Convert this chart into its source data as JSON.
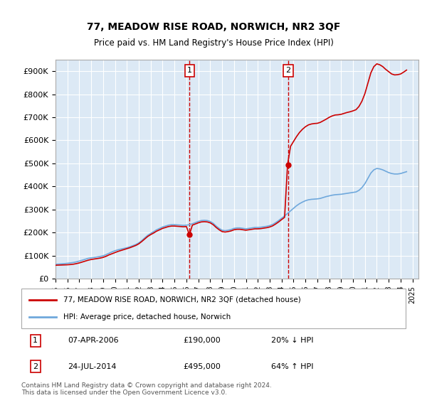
{
  "title": "77, MEADOW RISE ROAD, NORWICH, NR2 3QF",
  "subtitle": "Price paid vs. HM Land Registry's House Price Index (HPI)",
  "background_color": "#ffffff",
  "plot_bg_color": "#dce9f5",
  "grid_color": "#ffffff",
  "ylim": [
    0,
    950000
  ],
  "yticks": [
    0,
    100000,
    200000,
    300000,
    400000,
    500000,
    600000,
    700000,
    800000,
    900000
  ],
  "ytick_labels": [
    "£0",
    "£100K",
    "£200K",
    "£300K",
    "£400K",
    "£500K",
    "£600K",
    "£700K",
    "£800K",
    "£900K"
  ],
  "xlim_start": 1995.0,
  "xlim_end": 2025.5,
  "sale1_x": 2006.27,
  "sale1_y": 190000,
  "sale1_label": "1",
  "sale1_date": "07-APR-2006",
  "sale1_price": "£190,000",
  "sale1_hpi": "20% ↓ HPI",
  "sale2_x": 2014.56,
  "sale2_y": 495000,
  "sale2_label": "2",
  "sale2_date": "24-JUL-2014",
  "sale2_price": "£495,000",
  "sale2_hpi": "64% ↑ HPI",
  "legend_line1": "77, MEADOW RISE ROAD, NORWICH, NR2 3QF (detached house)",
  "legend_line2": "HPI: Average price, detached house, Norwich",
  "footnote": "Contains HM Land Registry data © Crown copyright and database right 2024.\nThis data is licensed under the Open Government Licence v3.0.",
  "hpi_color": "#6fa8dc",
  "property_color": "#cc0000",
  "sale_marker_color": "#cc0000",
  "vline_color": "#cc0000",
  "hpi_years": [
    1995.0,
    1995.25,
    1995.5,
    1995.75,
    1996.0,
    1996.25,
    1996.5,
    1996.75,
    1997.0,
    1997.25,
    1997.5,
    1997.75,
    1998.0,
    1998.25,
    1998.5,
    1998.75,
    1999.0,
    1999.25,
    1999.5,
    1999.75,
    2000.0,
    2000.25,
    2000.5,
    2000.75,
    2001.0,
    2001.25,
    2001.5,
    2001.75,
    2002.0,
    2002.25,
    2002.5,
    2002.75,
    2003.0,
    2003.25,
    2003.5,
    2003.75,
    2004.0,
    2004.25,
    2004.5,
    2004.75,
    2005.0,
    2005.25,
    2005.5,
    2005.75,
    2006.0,
    2006.25,
    2006.5,
    2006.75,
    2007.0,
    2007.25,
    2007.5,
    2007.75,
    2008.0,
    2008.25,
    2008.5,
    2008.75,
    2009.0,
    2009.25,
    2009.5,
    2009.75,
    2010.0,
    2010.25,
    2010.5,
    2010.75,
    2011.0,
    2011.25,
    2011.5,
    2011.75,
    2012.0,
    2012.25,
    2012.5,
    2012.75,
    2013.0,
    2013.25,
    2013.5,
    2013.75,
    2014.0,
    2014.25,
    2014.5,
    2014.75,
    2015.0,
    2015.25,
    2015.5,
    2015.75,
    2016.0,
    2016.25,
    2016.5,
    2016.75,
    2017.0,
    2017.25,
    2017.5,
    2017.75,
    2018.0,
    2018.25,
    2018.5,
    2018.75,
    2019.0,
    2019.25,
    2019.5,
    2019.75,
    2020.0,
    2020.25,
    2020.5,
    2020.75,
    2021.0,
    2021.25,
    2021.5,
    2021.75,
    2022.0,
    2022.25,
    2022.5,
    2022.75,
    2023.0,
    2023.25,
    2023.5,
    2023.75,
    2024.0,
    2024.25,
    2024.5
  ],
  "hpi_values": [
    62000,
    63000,
    64000,
    65000,
    66500,
    68000,
    70000,
    72500,
    76000,
    80000,
    84000,
    88000,
    90000,
    92000,
    94000,
    96000,
    99000,
    104000,
    110000,
    116000,
    121000,
    125000,
    128000,
    131000,
    134000,
    138000,
    143000,
    148000,
    155000,
    165000,
    177000,
    188000,
    196000,
    204000,
    212000,
    218000,
    224000,
    228000,
    232000,
    234000,
    234000,
    233000,
    232000,
    231000,
    232000,
    234000,
    238000,
    243000,
    248000,
    252000,
    253000,
    252000,
    248000,
    240000,
    228000,
    218000,
    210000,
    208000,
    210000,
    213000,
    218000,
    220000,
    220000,
    218000,
    216000,
    218000,
    220000,
    222000,
    222000,
    223000,
    225000,
    227000,
    230000,
    235000,
    243000,
    252000,
    262000,
    272000,
    283000,
    294000,
    305000,
    316000,
    325000,
    332000,
    338000,
    342000,
    344000,
    345000,
    346000,
    348000,
    352000,
    356000,
    359000,
    362000,
    364000,
    365000,
    366000,
    368000,
    370000,
    372000,
    374000,
    376000,
    383000,
    395000,
    412000,
    435000,
    458000,
    472000,
    478000,
    476000,
    472000,
    466000,
    460000,
    456000,
    454000,
    454000,
    456000,
    460000,
    464000
  ],
  "prop_years": [
    1995.0,
    1995.25,
    1995.5,
    1995.75,
    1996.0,
    1996.25,
    1996.5,
    1996.75,
    1997.0,
    1997.25,
    1997.5,
    1997.75,
    1998.0,
    1998.25,
    1998.5,
    1998.75,
    1999.0,
    1999.25,
    1999.5,
    1999.75,
    2000.0,
    2000.25,
    2000.5,
    2000.75,
    2001.0,
    2001.25,
    2001.5,
    2001.75,
    2002.0,
    2002.25,
    2002.5,
    2002.75,
    2003.0,
    2003.25,
    2003.5,
    2003.75,
    2004.0,
    2004.25,
    2004.5,
    2004.75,
    2005.0,
    2005.25,
    2005.5,
    2005.75,
    2006.0,
    2006.25,
    2006.5,
    2006.75,
    2007.0,
    2007.25,
    2007.5,
    2007.75,
    2008.0,
    2008.25,
    2008.5,
    2008.75,
    2009.0,
    2009.25,
    2009.5,
    2009.75,
    2010.0,
    2010.25,
    2010.5,
    2010.75,
    2011.0,
    2011.25,
    2011.5,
    2011.75,
    2012.0,
    2012.25,
    2012.5,
    2012.75,
    2013.0,
    2013.25,
    2013.5,
    2013.75,
    2014.0,
    2014.25,
    2014.5,
    2014.75,
    2015.0,
    2015.25,
    2015.5,
    2015.75,
    2016.0,
    2016.25,
    2016.5,
    2016.75,
    2017.0,
    2017.25,
    2017.5,
    2017.75,
    2018.0,
    2018.25,
    2018.5,
    2018.75,
    2019.0,
    2019.25,
    2019.5,
    2019.75,
    2020.0,
    2020.25,
    2020.5,
    2020.75,
    2021.0,
    2021.25,
    2021.5,
    2021.75,
    2022.0,
    2022.25,
    2022.5,
    2022.75,
    2023.0,
    2023.25,
    2023.5,
    2023.75,
    2024.0,
    2024.25,
    2024.5
  ],
  "prop_values": [
    58000,
    58500,
    59000,
    59500,
    60000,
    61000,
    62500,
    65000,
    68000,
    72000,
    76000,
    80000,
    83000,
    85000,
    87000,
    89000,
    92000,
    97000,
    103000,
    108000,
    113000,
    118000,
    122000,
    126000,
    130000,
    134000,
    139000,
    144000,
    151000,
    161000,
    172000,
    183000,
    191000,
    198000,
    206000,
    212000,
    218000,
    222000,
    226000,
    228000,
    228000,
    227000,
    226000,
    225000,
    226000,
    190000,
    232000,
    237000,
    242000,
    246000,
    247000,
    246000,
    242000,
    234000,
    222000,
    212000,
    204000,
    202000,
    204000,
    207000,
    212000,
    214000,
    214000,
    212000,
    210000,
    212000,
    214000,
    216000,
    216000,
    217000,
    219000,
    221000,
    224000,
    229000,
    237000,
    246000,
    256000,
    266000,
    495000,
    574000,
    595000,
    616000,
    634000,
    648000,
    659000,
    667000,
    671000,
    673000,
    674000,
    678000,
    685000,
    692000,
    700000,
    706000,
    710000,
    711000,
    713000,
    717000,
    721000,
    724000,
    728000,
    733000,
    747000,
    770000,
    803000,
    848000,
    893000,
    920000,
    932000,
    928000,
    920000,
    908000,
    898000,
    888000,
    884000,
    885000,
    888000,
    896000,
    905000
  ]
}
